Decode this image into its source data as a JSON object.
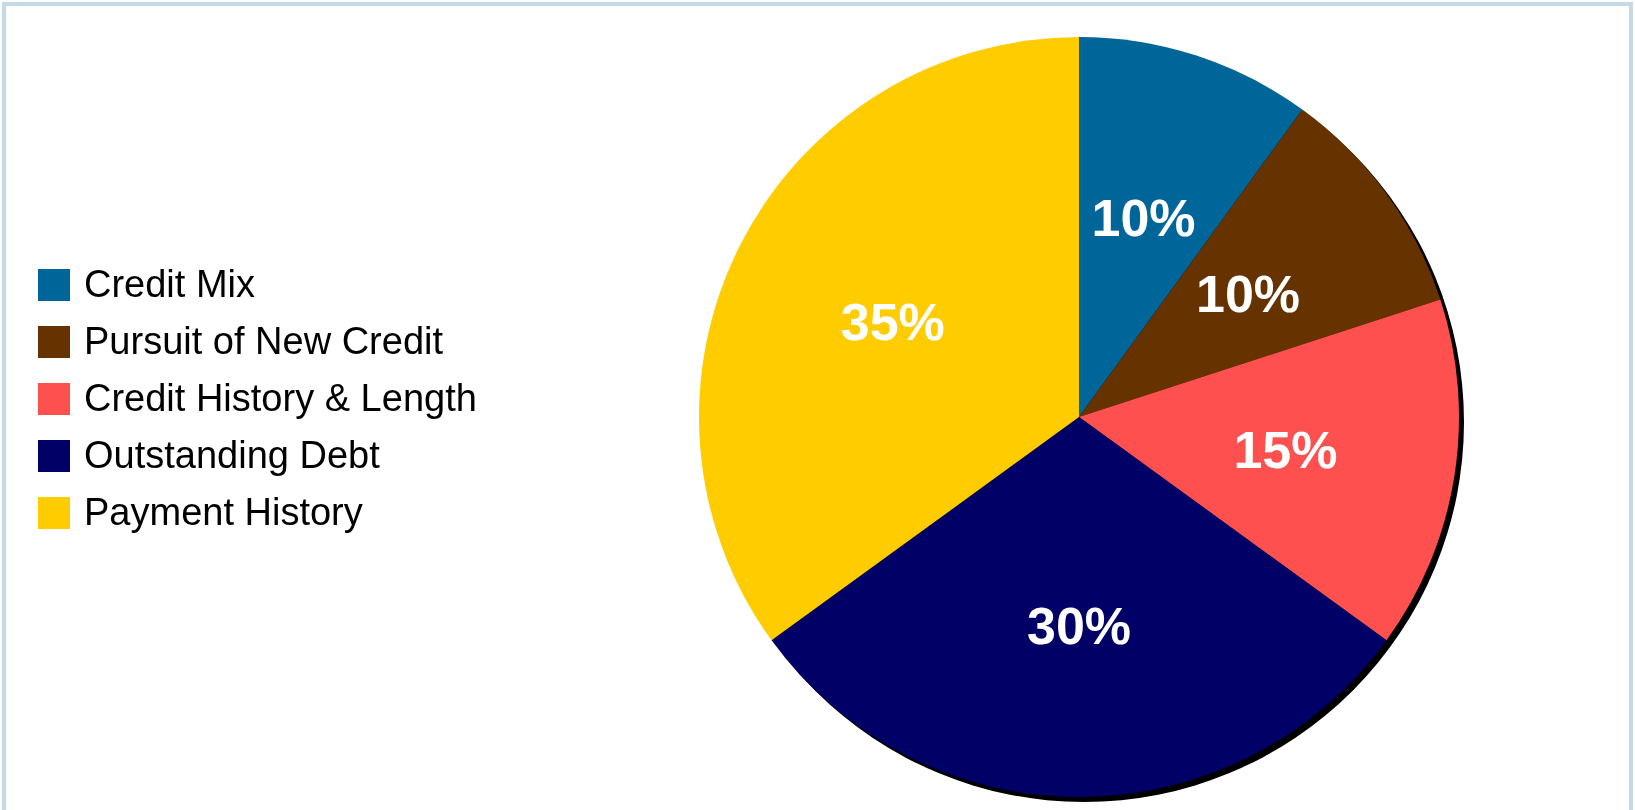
{
  "chart_data": {
    "type": "pie",
    "categories": [
      "Credit Mix",
      "Pursuit of New Credit",
      "Credit History & Length",
      "Outstanding Debt",
      "Payment History"
    ],
    "values": [
      10,
      10,
      15,
      30,
      35
    ],
    "colors": [
      "#006699",
      "#663300",
      "#ff5050",
      "#000066",
      "#ffcc00"
    ],
    "value_labels": [
      "10%",
      "10%",
      "15%",
      "30%",
      "35%"
    ],
    "legend": "left"
  }
}
